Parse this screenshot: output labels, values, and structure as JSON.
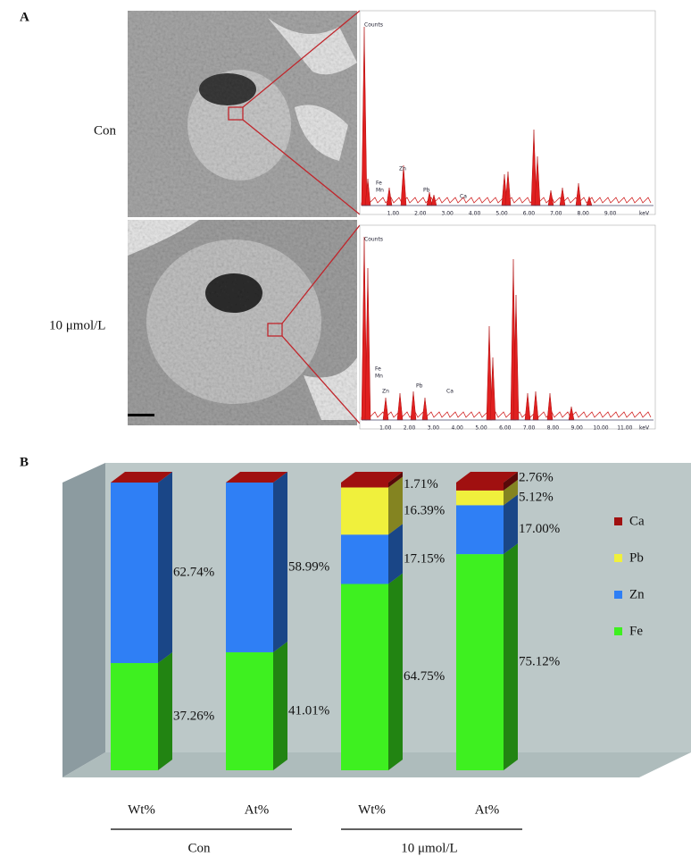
{
  "panel_a": {
    "label": "A",
    "rows": [
      {
        "label": "Con",
        "spectrum": {
          "y_label": "Counts",
          "x_label": "keV",
          "x_ticks": [
            "1.00",
            "2.00",
            "3.00",
            "4.00",
            "5.00",
            "6.00",
            "7.00",
            "8.00",
            "9.00"
          ],
          "elements": [
            "Fe",
            "Mn",
            "Zn",
            "Pb",
            "Ca"
          ]
        }
      },
      {
        "label": "10 μmol/L",
        "spectrum": {
          "y_label": "Counts",
          "x_label": "keV",
          "x_ticks": [
            "1.00",
            "2.00",
            "3.00",
            "4.00",
            "5.00",
            "6.00",
            "7.00",
            "8.00",
            "9.00",
            "10.00",
            "11.00"
          ],
          "elements": [
            "Fe",
            "Mn",
            "Zn",
            "Pb",
            "Ca"
          ]
        }
      }
    ]
  },
  "chart_data": {
    "type": "bar",
    "stacked": true,
    "three_d": true,
    "label": "B",
    "categories": [
      "Wt%",
      "At%",
      "Wt%",
      "At%"
    ],
    "groups": [
      "Con",
      "10 μmol/L"
    ],
    "ylim": [
      0,
      100
    ],
    "series": [
      {
        "name": "Fe",
        "color": "#3ef020",
        "values": [
          37.26,
          41.01,
          64.75,
          75.12
        ],
        "value_labels": [
          "37.26%",
          "41.01%",
          "64.75%",
          "75.12%"
        ]
      },
      {
        "name": "Zn",
        "color": "#2f7ff5",
        "values": [
          62.74,
          58.99,
          17.15,
          17.0
        ],
        "value_labels": [
          "62.74%",
          "58.99%",
          "17.15%",
          "17.00%"
        ]
      },
      {
        "name": "Pb",
        "color": "#f0f03c",
        "values": [
          null,
          null,
          16.39,
          5.12
        ],
        "value_labels": [
          null,
          null,
          "16.39%",
          "5.12%"
        ]
      },
      {
        "name": "Ca",
        "color": "#a01010",
        "values": [
          null,
          null,
          1.71,
          2.76
        ],
        "value_labels": [
          null,
          null,
          "1.71%",
          "2.76%"
        ]
      }
    ],
    "legend": "right"
  }
}
